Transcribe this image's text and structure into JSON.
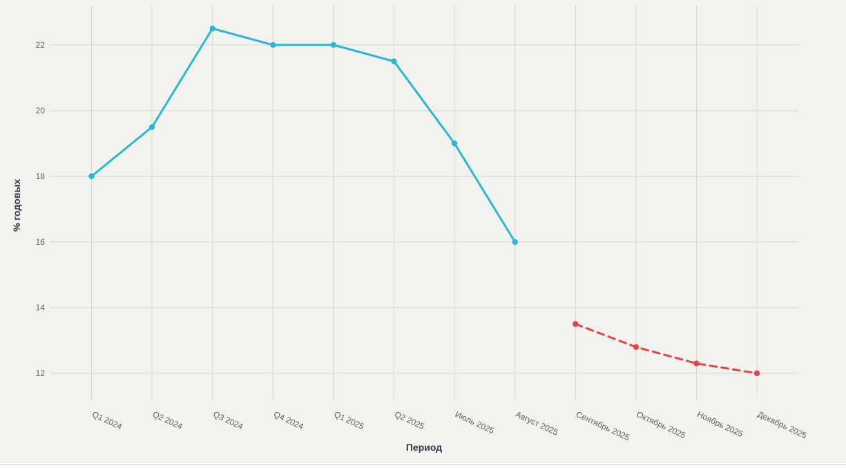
{
  "chart_data": {
    "type": "line",
    "xlabel": "Период",
    "ylabel": "% годовых",
    "categories": [
      "Q1 2024",
      "Q2 2024",
      "Q3 2024",
      "Q4 2024",
      "Q1 2025",
      "Q2 2025",
      "Июль 2025",
      "Август 2025",
      "Сентябрь 2025",
      "Октябрь 2025",
      "Ноябрь 2025",
      "Декабрь 2025"
    ],
    "ylim": [
      11.2,
      23.2
    ],
    "yticks": [
      12,
      14,
      16,
      18,
      20,
      22
    ],
    "grid": true,
    "series": [
      {
        "values": [
          18.0,
          19.5,
          22.5,
          22.0,
          22.0,
          21.5,
          19.0,
          16.0,
          null,
          null,
          null,
          null
        ],
        "color": "#2ab7d3",
        "style": "solid"
      },
      {
        "values": [
          null,
          null,
          null,
          null,
          null,
          null,
          null,
          null,
          13.5,
          12.8,
          12.3,
          12.0
        ],
        "color": "#e24646",
        "style": "dashed"
      }
    ]
  }
}
